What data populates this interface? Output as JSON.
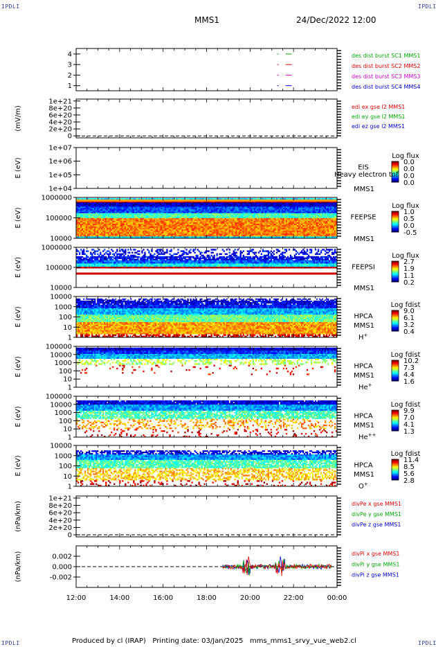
{
  "corners": {
    "top_left": "IPDLI",
    "top_right": "IPDLI",
    "bottom_left": "IPDLI",
    "bottom_right": "IPDLI"
  },
  "header": {
    "spacecraft": "MMS1",
    "datetime": "24/Dec/2022 12:00"
  },
  "footer": {
    "credit": "Produced by cl (IRAP)",
    "printing": "Printing date: 03/Jan/2025",
    "file": "mms_mms1_srvy_vue_web2.cl"
  },
  "colors": {
    "red": "#e00000",
    "green": "#00cc00",
    "blue": "#0000cc",
    "magenta": "#cc00cc",
    "cyan": "#00bbdd",
    "yellow": "#eedd00"
  },
  "chart_data": [
    {
      "type": "line",
      "ylabel": "",
      "yticks": [
        "1",
        "2",
        "3",
        "4"
      ],
      "ylim": [
        0.5,
        4.5
      ],
      "series": [
        {
          "name": "des dist burst SC1 MMS1",
          "y": 4,
          "x": [
            "21:15",
            "21:55"
          ],
          "color": "#00aa00"
        },
        {
          "name": "des dist burst SC2 MMS2",
          "y": 3,
          "x": [
            "21:15",
            "21:55"
          ],
          "color": "#e00000"
        },
        {
          "name": "des dist burst SC3 MMS3",
          "y": 2,
          "x": [
            "21:15",
            "21:55"
          ],
          "color": "#cc00cc"
        },
        {
          "name": "des dist burst SC4 MMS4",
          "y": 1,
          "x": [
            "21:15",
            "21:55"
          ],
          "color": "#0000cc"
        }
      ]
    },
    {
      "type": "line",
      "ylabel": "(mV/m)",
      "yticks": [
        "0",
        "2e+20",
        "4e+20",
        "6e+20",
        "8e+20",
        "1e+21"
      ],
      "series": [
        {
          "name": "edi ex gse l2 MMS1",
          "color": "#e00000"
        },
        {
          "name": "edi ey gse l2 MMS1",
          "color": "#00aa00"
        },
        {
          "name": "edi ez gse l2 MMS1",
          "color": "#0000cc"
        }
      ]
    },
    {
      "type": "heatmap",
      "ylabel": "E (eV)",
      "yticks": [
        "1e+04",
        "1e+05",
        "1e+06",
        "1e+07"
      ],
      "instrument": "EIS",
      "overlay": "Heavy electron tof",
      "sc": "MMS1",
      "species": "",
      "colorbar_title": "Log flux",
      "colorbar_ticks": [
        "0.0",
        "0.0",
        "0.0",
        "0.0"
      ]
    },
    {
      "type": "heatmap",
      "ylabel": "E (eV)",
      "yticks": [
        "10000",
        "100000",
        "1000000"
      ],
      "instrument": "FEEPSE",
      "sc": "MMS1",
      "species": "",
      "colorbar_title": "Log flux",
      "colorbar_ticks": [
        "1.0",
        "0.5",
        "0.0",
        "-0.5"
      ]
    },
    {
      "type": "heatmap",
      "ylabel": "E (eV)",
      "yticks": [
        "10000",
        "100000",
        "1000000"
      ],
      "instrument": "FEEPSI",
      "sc": "MMS1",
      "species": "",
      "colorbar_title": "Log flux",
      "colorbar_ticks": [
        "2.7",
        "1.9",
        "1.1",
        "0.2"
      ]
    },
    {
      "type": "heatmap",
      "ylabel": "E (eV)",
      "yticks": [
        "1",
        "10",
        "100",
        "1000",
        "10000"
      ],
      "instrument": "HPCA",
      "sc": "MMS1",
      "species": "H",
      "species_sup": "+",
      "colorbar_title": "Log fdist",
      "colorbar_ticks": [
        "9.0",
        "6.1",
        "3.2",
        "0.4"
      ]
    },
    {
      "type": "heatmap",
      "ylabel": "E (eV)",
      "yticks": [
        "1",
        "10",
        "100",
        "1000",
        "10000",
        "100000"
      ],
      "instrument": "HPCA",
      "sc": "MMS1",
      "species": "He",
      "species_sup": "+",
      "colorbar_title": "Log fdist",
      "colorbar_ticks": [
        "10.2",
        "7.3",
        "4.4",
        "1.6"
      ]
    },
    {
      "type": "heatmap",
      "ylabel": "E (eV)",
      "yticks": [
        "1",
        "10",
        "100",
        "1000",
        "10000",
        "100000"
      ],
      "instrument": "HPCA",
      "sc": "MMS1",
      "species": "He",
      "species_sup": "++",
      "colorbar_title": "Log fdist",
      "colorbar_ticks": [
        "9.9",
        "7.0",
        "4.1",
        "1.3"
      ]
    },
    {
      "type": "heatmap",
      "ylabel": "E (eV)",
      "yticks": [
        "1",
        "10",
        "100",
        "1000",
        "10000"
      ],
      "instrument": "HPCA",
      "sc": "MMS1",
      "species": "O",
      "species_sup": "+",
      "colorbar_title": "Log fdist",
      "colorbar_ticks": [
        "11.4",
        "8.5",
        "5.6",
        "2.8"
      ]
    },
    {
      "type": "line",
      "ylabel": "(nPa/km)",
      "yticks": [
        "0",
        "2e+20",
        "4e+20",
        "6e+20",
        "8e+20",
        "1e+21"
      ],
      "series": [
        {
          "name": "divPe x gse MMS1",
          "color": "#e00000"
        },
        {
          "name": "divPe y gse MMS1",
          "color": "#00aa00"
        },
        {
          "name": "divPe z gse MMS1",
          "color": "#0000cc"
        }
      ]
    },
    {
      "type": "line",
      "ylabel": "(nPa/km)",
      "yticks": [
        "-0.002",
        "0.000",
        "0.002"
      ],
      "ylim": [
        -0.0035,
        0.0035
      ],
      "series": [
        {
          "name": "divPi x gse MMS1",
          "color": "#e00000"
        },
        {
          "name": "divPi y gse MMS1",
          "color": "#00aa00"
        },
        {
          "name": "divPi z gse MMS1",
          "color": "#0000cc"
        }
      ]
    }
  ],
  "xaxis": {
    "ticks": [
      "12:00",
      "14:00",
      "16:00",
      "18:00",
      "20:00",
      "22:00",
      "00:00"
    ]
  }
}
